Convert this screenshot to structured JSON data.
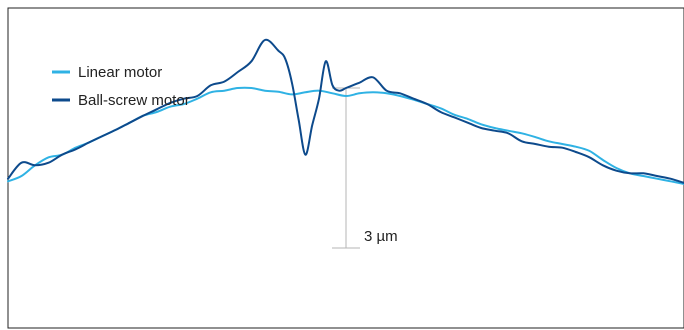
{
  "chart_data": {
    "type": "line",
    "title": "",
    "xlabel": "",
    "ylabel": "",
    "grid": false,
    "legend_position": "top-left",
    "xlim": [
      0,
      100
    ],
    "ylim": [
      -3,
      3
    ],
    "series": [
      {
        "name": "Linear motor",
        "color": "#2fb2e4",
        "x": [
          0,
          2,
          4,
          6,
          8,
          10,
          12,
          14,
          16,
          18,
          20,
          22,
          24,
          26,
          28,
          30,
          32,
          34,
          36,
          38,
          40,
          42,
          44,
          46,
          48,
          50,
          52,
          54,
          56,
          58,
          60,
          62,
          64,
          66,
          68,
          70,
          72,
          74,
          76,
          78,
          80,
          82,
          84,
          86,
          88,
          90,
          92,
          94,
          96,
          98,
          100
        ],
        "y": [
          -0.25,
          -0.15,
          0.05,
          0.2,
          0.25,
          0.38,
          0.48,
          0.6,
          0.72,
          0.85,
          0.98,
          1.05,
          1.15,
          1.2,
          1.3,
          1.42,
          1.45,
          1.5,
          1.5,
          1.45,
          1.43,
          1.38,
          1.42,
          1.45,
          1.4,
          1.35,
          1.4,
          1.42,
          1.4,
          1.35,
          1.28,
          1.2,
          1.12,
          1.0,
          0.92,
          0.82,
          0.75,
          0.7,
          0.65,
          0.58,
          0.5,
          0.45,
          0.4,
          0.32,
          0.15,
          0.0,
          -0.1,
          -0.15,
          -0.2,
          -0.25,
          -0.3
        ]
      },
      {
        "name": "Ball-screw motor",
        "color": "#0d4a8c",
        "x": [
          0,
          2,
          4,
          6,
          8,
          10,
          12,
          14,
          16,
          18,
          20,
          22,
          24,
          26,
          28,
          30,
          32,
          34,
          36,
          38,
          40,
          41,
          42,
          43,
          44,
          45,
          46,
          47,
          48,
          49,
          50,
          51,
          52,
          54,
          56,
          58,
          60,
          62,
          64,
          66,
          68,
          70,
          72,
          74,
          76,
          78,
          80,
          82,
          84,
          86,
          88,
          90,
          92,
          94,
          96,
          98,
          100
        ],
        "y": [
          -0.2,
          0.1,
          0.05,
          0.1,
          0.25,
          0.35,
          0.48,
          0.6,
          0.72,
          0.85,
          0.98,
          1.1,
          1.22,
          1.3,
          1.35,
          1.55,
          1.62,
          1.8,
          2.0,
          2.4,
          2.2,
          2.05,
          1.6,
          0.9,
          0.25,
          0.8,
          1.3,
          2.0,
          1.55,
          1.45,
          1.5,
          1.55,
          1.6,
          1.7,
          1.45,
          1.4,
          1.3,
          1.2,
          1.05,
          0.95,
          0.85,
          0.75,
          0.7,
          0.65,
          0.5,
          0.45,
          0.4,
          0.38,
          0.3,
          0.2,
          0.05,
          -0.05,
          -0.1,
          -0.1,
          -0.15,
          -0.2,
          -0.28
        ]
      }
    ],
    "annotations": [
      {
        "text": "3 µm",
        "span": [
          -1.5,
          1.5
        ],
        "x": 50
      }
    ]
  }
}
